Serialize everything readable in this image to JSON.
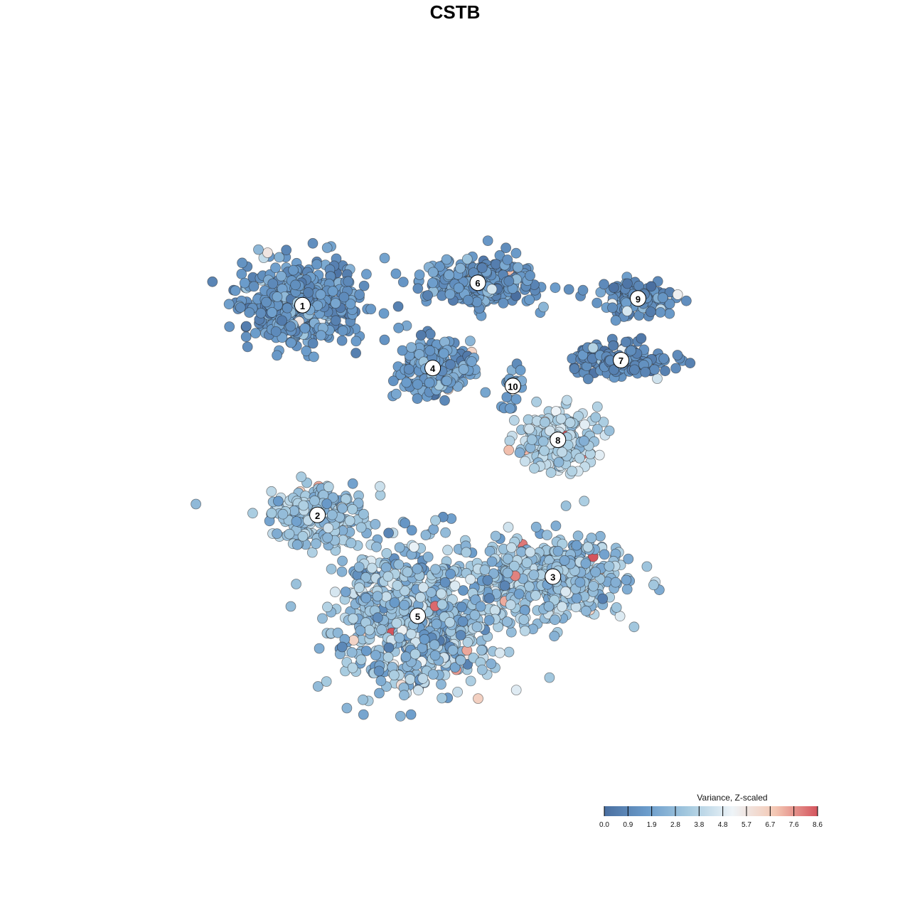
{
  "chart_data": {
    "type": "scatter",
    "title": "CSTB",
    "xlabel": "",
    "ylabel": "",
    "grid": false,
    "color_scale": {
      "title": "Variance, Z-scaled",
      "min": 0.0,
      "max": 8.6,
      "ticks": [
        "0.0",
        "0.9",
        "1.9",
        "2.8",
        "3.8",
        "4.8",
        "5.7",
        "6.7",
        "7.6",
        "8.6"
      ],
      "colors": [
        "#4a6fa0",
        "#6b9ccb",
        "#a7cbe0",
        "#eef4f8",
        "#f4c8b4",
        "#d4545d"
      ],
      "placement": "bottom-right"
    },
    "clusters": [
      {
        "label": "1",
        "x": -16.0,
        "y": 14.2,
        "spread": [
          5.2,
          3.2
        ],
        "n": 520,
        "mean": 1.5,
        "sd": 0.6
      },
      {
        "label": "6",
        "x": 1.5,
        "y": 16.2,
        "spread": [
          5.0,
          1.9
        ],
        "n": 330,
        "mean": 1.5,
        "sd": 0.55
      },
      {
        "label": "9",
        "x": 17.5,
        "y": 14.8,
        "spread": [
          3.4,
          1.5
        ],
        "n": 120,
        "mean": 1.2,
        "sd": 0.5
      },
      {
        "label": "7",
        "x": 15.8,
        "y": 9.3,
        "spread": [
          4.5,
          1.3
        ],
        "n": 170,
        "mean": 0.9,
        "sd": 0.45
      },
      {
        "label": "4",
        "x": -3.0,
        "y": 8.6,
        "spread": [
          3.0,
          2.3
        ],
        "n": 260,
        "mean": 1.8,
        "sd": 0.6
      },
      {
        "label": "10",
        "x": 5.0,
        "y": 7.0,
        "spread": [
          1.2,
          1.3
        ],
        "n": 25,
        "mean": 2.0,
        "sd": 0.5
      },
      {
        "label": "8",
        "x": 9.5,
        "y": 2.2,
        "spread": [
          3.8,
          2.4
        ],
        "n": 210,
        "mean": 3.7,
        "sd": 0.6
      },
      {
        "label": "2",
        "x": -14.5,
        "y": -4.5,
        "spread": [
          4.6,
          2.3
        ],
        "n": 210,
        "mean": 3.0,
        "sd": 0.6
      },
      {
        "label": "3",
        "x": 9.0,
        "y": -10.0,
        "spread": [
          6.5,
          3.2
        ],
        "n": 470,
        "mean": 3.0,
        "sd": 0.7
      },
      {
        "label": "5",
        "x": -4.5,
        "y": -13.5,
        "spread": [
          7.5,
          5.8
        ],
        "n": 780,
        "mean": 2.9,
        "sd": 0.9
      }
    ],
    "xlim": [
      -32,
      34
    ],
    "ylim": [
      -28,
      30
    ]
  }
}
